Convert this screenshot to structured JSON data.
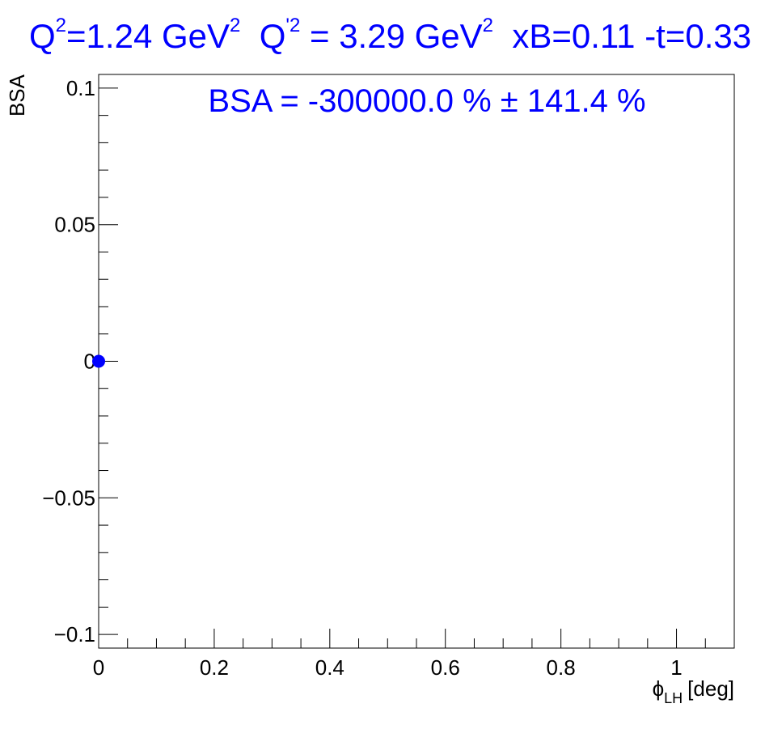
{
  "title": {
    "part1": "Q",
    "sup1": "2",
    "part2": "=1.24 GeV",
    "sup2": "2",
    "part3": "Q",
    "sup3": "'2",
    "part4": "= 3.29 GeV",
    "sup4": "2",
    "part5": "xB=0.11  -t=0.33"
  },
  "colors": {
    "accent": "#0000ff",
    "axis": "#000000",
    "background": "#ffffff"
  },
  "chart_data": {
    "type": "scatter",
    "ylabel": "BSA",
    "xlabel_symbol": "ϕ",
    "xlabel_sub": "LH",
    "xlabel_unit": "[deg]",
    "annotation": "BSA = -300000.0 %  ± 141.4 %",
    "xlim": [
      0,
      1.1
    ],
    "ylim": [
      -0.105,
      0.105
    ],
    "x_ticks": [
      {
        "value": 0,
        "label": "0"
      },
      {
        "value": 0.2,
        "label": "0.2"
      },
      {
        "value": 0.4,
        "label": "0.4"
      },
      {
        "value": 0.6,
        "label": "0.6"
      },
      {
        "value": 0.8,
        "label": "0.8"
      },
      {
        "value": 1,
        "label": "1"
      }
    ],
    "y_ticks": [
      {
        "value": 0.1,
        "label": "0.1"
      },
      {
        "value": 0.05,
        "label": "0.05"
      },
      {
        "value": 0,
        "label": "0"
      },
      {
        "value": -0.05,
        "label": "−0.05"
      },
      {
        "value": -0.1,
        "label": "−0.1"
      }
    ],
    "series": [
      {
        "color": "#0000ff",
        "points": [
          {
            "x": 0,
            "y": 0
          }
        ]
      }
    ],
    "grid": false,
    "legend": "none"
  }
}
